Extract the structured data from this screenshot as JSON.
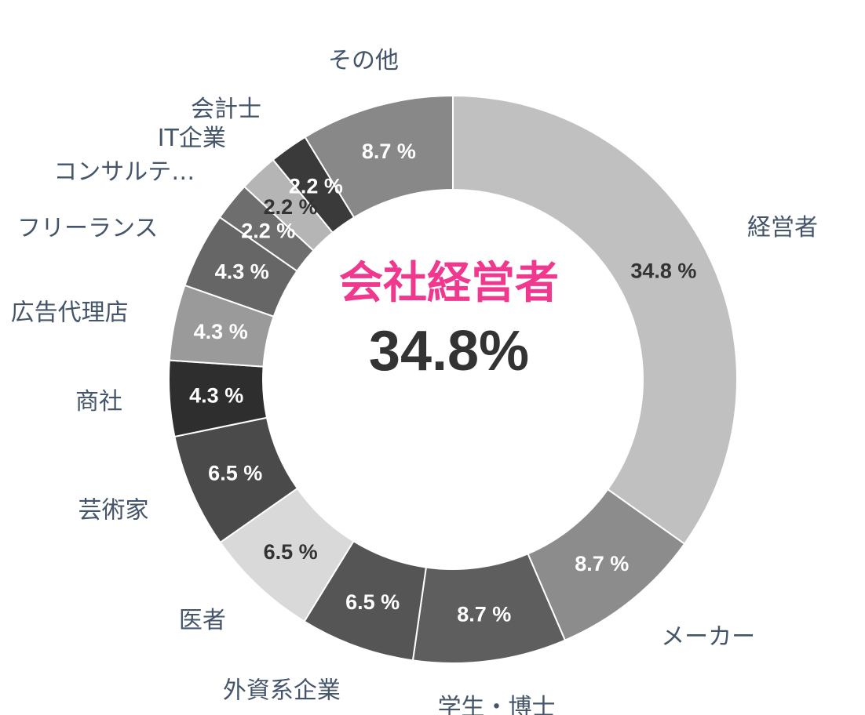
{
  "center": {
    "title": "会社経営者",
    "value": "34.8%",
    "title_color": "#f0388f"
  },
  "chart_data": {
    "type": "pie",
    "donut": true,
    "title": "",
    "slices": [
      {
        "label": "経営者",
        "value": 34.8,
        "display": "34.8 %",
        "color": "#c0c0c0",
        "text_color": "#333333"
      },
      {
        "label": "メーカー",
        "value": 8.7,
        "display": "8.7 %",
        "color": "#8c8c8c",
        "text_color": "#ffffff"
      },
      {
        "label": "学生・博士",
        "value": 8.7,
        "display": "8.7 %",
        "color": "#5e5e5e",
        "text_color": "#ffffff"
      },
      {
        "label": "外資系企業",
        "value": 6.5,
        "display": "6.5 %",
        "color": "#555555",
        "text_color": "#ffffff"
      },
      {
        "label": "医者",
        "value": 6.5,
        "display": "6.5 %",
        "color": "#d9d9d9",
        "text_color": "#333333"
      },
      {
        "label": "芸術家",
        "value": 6.5,
        "display": "6.5 %",
        "color": "#4a4a4a",
        "text_color": "#ffffff"
      },
      {
        "label": "商社",
        "value": 4.3,
        "display": "4.3 %",
        "color": "#2e2e2e",
        "text_color": "#ffffff"
      },
      {
        "label": "広告代理店",
        "value": 4.3,
        "display": "4.3 %",
        "color": "#9a9a9a",
        "text_color": "#ffffff"
      },
      {
        "label": "フリーランス",
        "value": 4.3,
        "display": "4.3 %",
        "color": "#666666",
        "text_color": "#ffffff"
      },
      {
        "label": "コンサルテ…",
        "value": 2.2,
        "display": "2.2 %",
        "color": "#6e6e6e",
        "text_color": "#ffffff"
      },
      {
        "label": "IT企業",
        "value": 2.2,
        "display": "2.2 %",
        "color": "#b5b5b5",
        "text_color": "#333333"
      },
      {
        "label": "会計士",
        "value": 2.2,
        "display": "2.2 %",
        "color": "#3a3a3a",
        "text_color": "#ffffff"
      },
      {
        "label": "その他",
        "value": 8.7,
        "display": "8.7 %",
        "color": "#888888",
        "text_color": "#ffffff"
      }
    ]
  }
}
